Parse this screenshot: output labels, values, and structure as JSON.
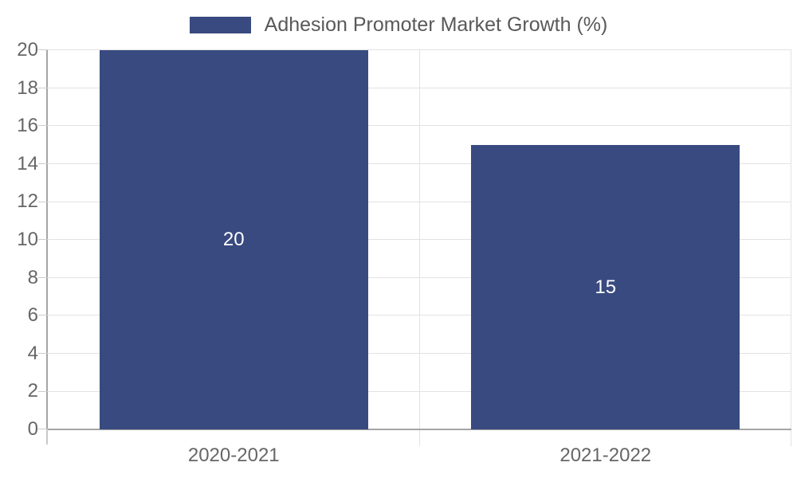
{
  "legend": {
    "label": "Adhesion Promoter Market Growth (%)"
  },
  "chart_data": {
    "type": "bar",
    "title": "Adhesion Promoter Market Growth (%)",
    "categories": [
      "2020-2021",
      "2021-2022"
    ],
    "values": [
      20,
      15
    ],
    "data_labels": [
      "20",
      "15"
    ],
    "xlabel": "",
    "ylabel": "",
    "ylim": [
      0,
      20
    ],
    "ytick_step": 2,
    "ytick_labels": [
      "0",
      "2",
      "4",
      "6",
      "8",
      "10",
      "12",
      "14",
      "16",
      "18",
      "20"
    ],
    "grid": true,
    "legend_position": "top-center",
    "colors": {
      "bar": "#394A80",
      "bar_label": "#FFFFFF",
      "axis": "#A5A5A5",
      "gridline": "#E2E2E2",
      "tick": "#CCCCCC",
      "tick_label": "#666666",
      "legend_text": "#595959",
      "background": "#FFFFFF"
    }
  }
}
